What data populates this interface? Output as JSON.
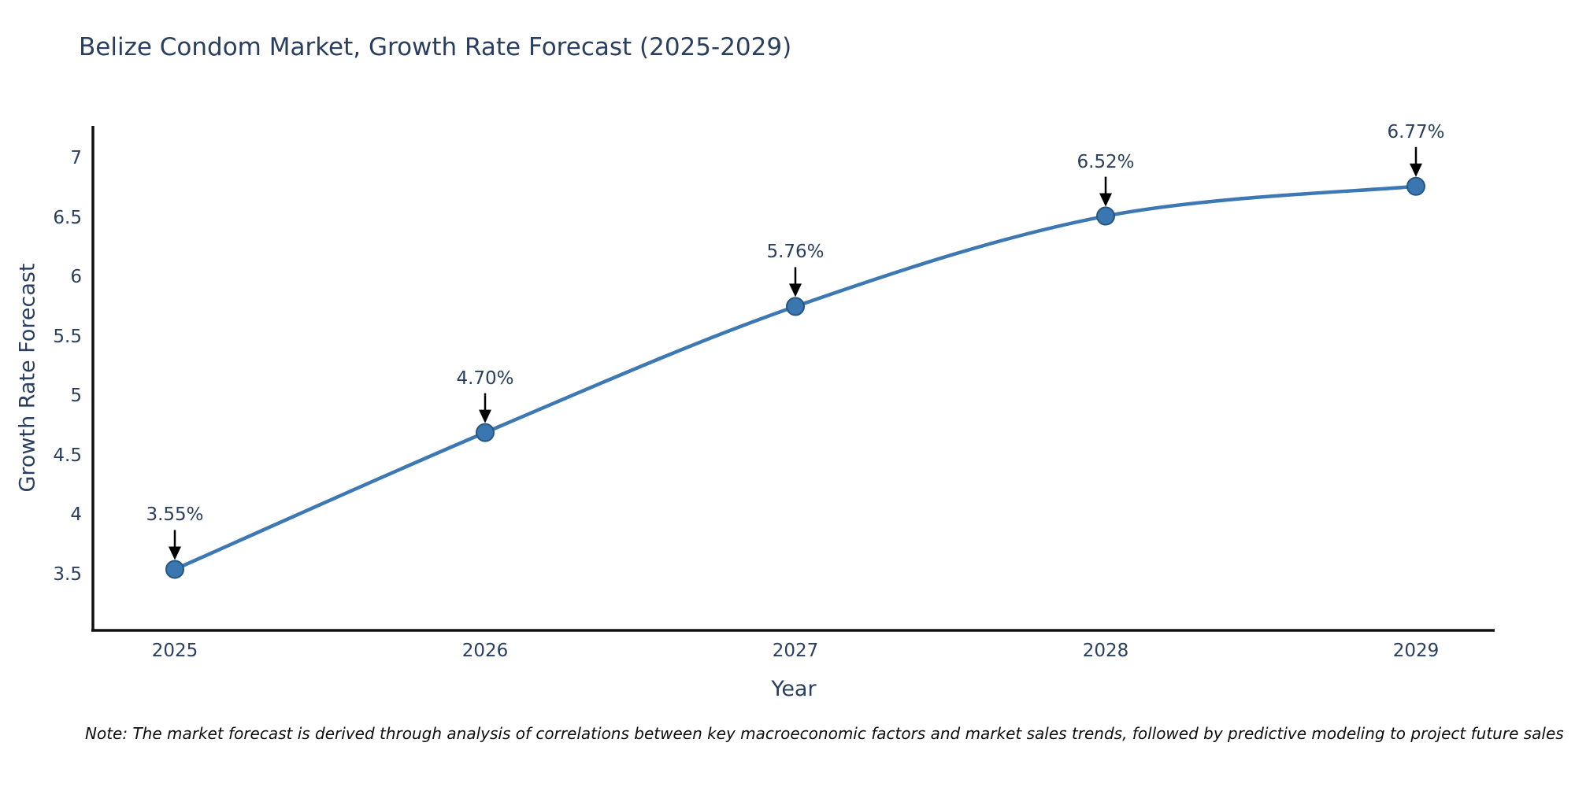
{
  "title": "Belize Condom Market, Growth Rate Forecast (2025-2029)",
  "note": "Note: The market forecast is derived through analysis of correlations between key macroeconomic factors and market sales trends, followed by predictive modeling to project future sales",
  "chart_data": {
    "type": "line",
    "title": "Belize Condom Market, Growth Rate Forecast (2025-2029)",
    "xlabel": "Year",
    "ylabel": "Growth Rate Forecast",
    "x": [
      2025,
      2026,
      2027,
      2028,
      2029
    ],
    "values": [
      3.55,
      4.7,
      5.76,
      6.52,
      6.77
    ],
    "point_labels": [
      "3.55%",
      "4.70%",
      "5.76%",
      "6.52%",
      "6.77%"
    ],
    "yticks": [
      3.5,
      4,
      4.5,
      5,
      5.5,
      6,
      6.5,
      7
    ],
    "ylim": [
      3.04,
      7.28
    ],
    "line_shape": "spline",
    "grid": false,
    "legend": "none",
    "colors": {
      "line": "#3d78b3",
      "marker_fill": "#3a76b0",
      "marker_border": "#24577f",
      "axis": "#101010",
      "annotation_arrow": "#000000",
      "text": "#2a3f5f"
    }
  }
}
